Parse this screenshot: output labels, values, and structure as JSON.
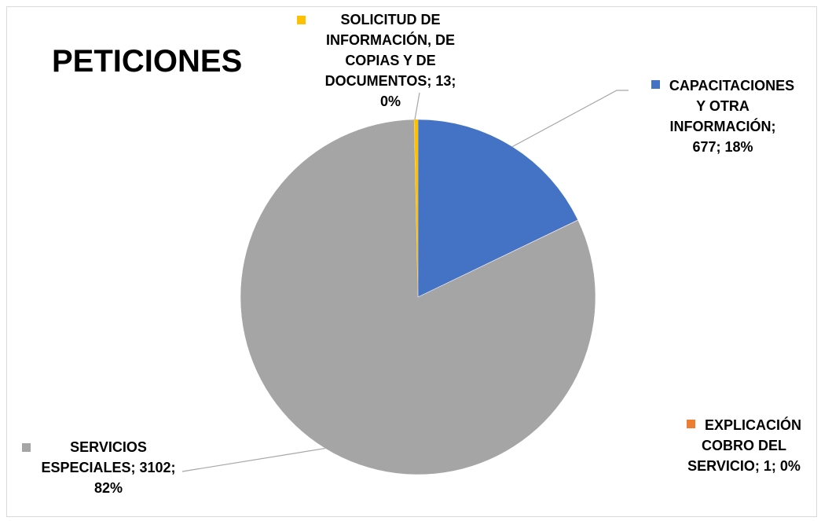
{
  "chart_data": {
    "type": "pie",
    "title": "PETICIONES",
    "slices": [
      {
        "name": "CAPACITACIONES Y OTRA INFORMACIÓN",
        "value": 677,
        "percent": "18%",
        "color": "#4472C4",
        "label_lines": [
          "CAPACITACIONES",
          "Y OTRA",
          "INFORMACIÓN;",
          "677; 18%"
        ]
      },
      {
        "name": "EXPLICACIÓN COBRO DEL SERVICIO",
        "value": 1,
        "percent": "0%",
        "color": "#ED7D31",
        "label_lines": [
          "EXPLICACIÓN",
          "COBRO DEL",
          "SERVICIO; 1; 0%"
        ]
      },
      {
        "name": "SERVICIOS ESPECIALES",
        "value": 3102,
        "percent": "82%",
        "color": "#A5A5A5",
        "label_lines": [
          "SERVICIOS",
          "ESPECIALES; 3102;",
          "82%"
        ]
      },
      {
        "name": "SOLICITUD DE INFORMACIÓN, DE COPIAS Y DE DOCUMENTOS",
        "value": 13,
        "percent": "0%",
        "color": "#FFC000",
        "label_lines": [
          "SOLICITUD DE",
          "INFORMACIÓN, DE",
          "COPIAS Y DE",
          "DOCUMENTOS; 13;",
          "0%"
        ]
      }
    ]
  }
}
